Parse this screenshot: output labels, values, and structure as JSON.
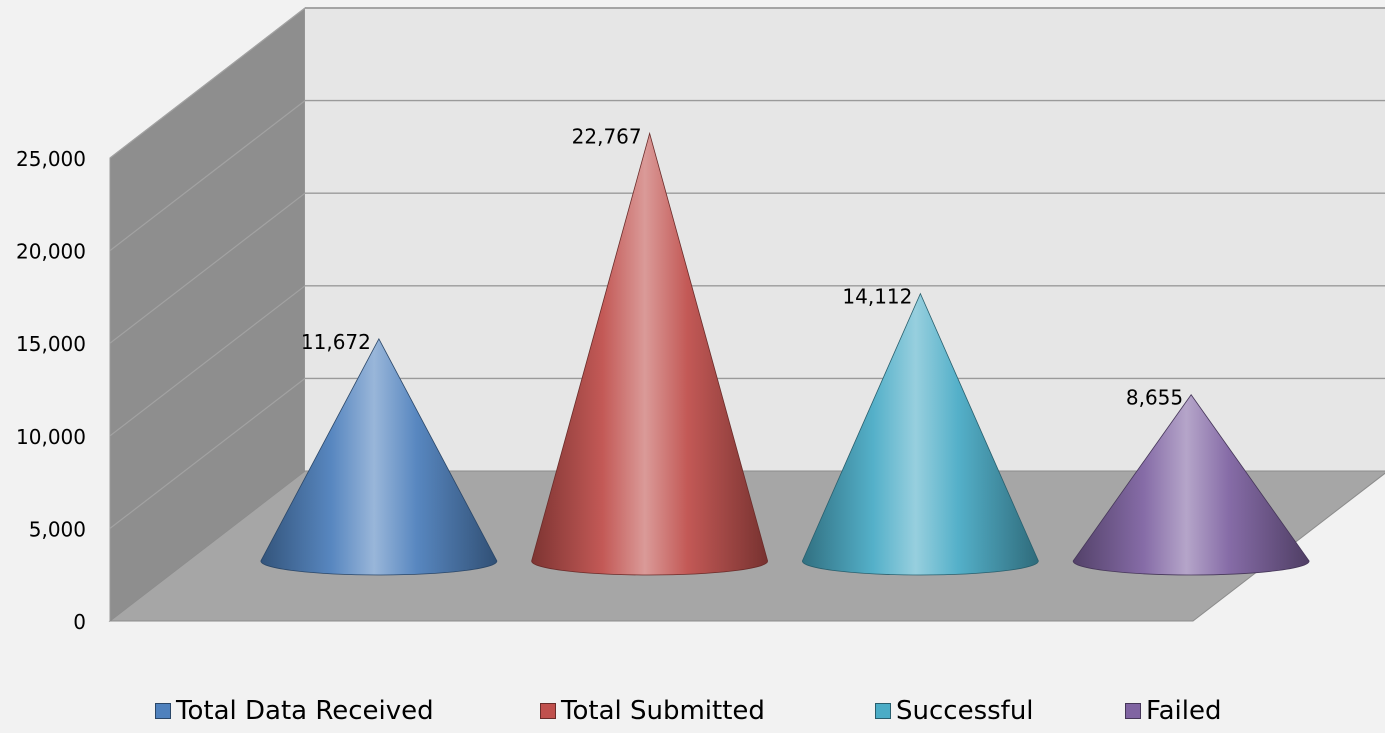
{
  "chart_data": {
    "type": "bar",
    "shape": "cone-3d",
    "categories": [
      "Total Data Received",
      "Total Submitted",
      "Successful",
      "Failed"
    ],
    "values": [
      11672,
      22767,
      14112,
      8655
    ],
    "value_labels": [
      "11,672",
      "22,767",
      "14,112",
      "8,655"
    ],
    "colors": [
      "#4f81bd",
      "#c0504d",
      "#4bacc6",
      "#8064a2"
    ],
    "yticks": [
      0,
      5000,
      10000,
      15000,
      20000,
      25000
    ],
    "ytick_labels": [
      "0",
      "5,000",
      "10,000",
      "15,000",
      "20,000",
      "25,000"
    ],
    "ylim": [
      0,
      25000
    ],
    "grid": true,
    "legend_position": "bottom",
    "title": "",
    "xlabel": "",
    "ylabel": ""
  }
}
